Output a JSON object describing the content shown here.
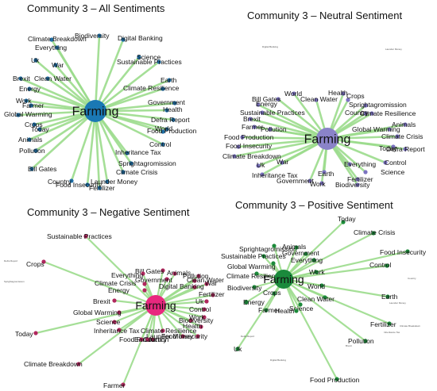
{
  "edge_color": "#9bdc8c",
  "panels": [
    {
      "id": "all",
      "title": "Community 3 – All Sentiments",
      "hub": {
        "label": "Farming",
        "color": "#1a78b4"
      },
      "node_color": "#1f6fa6",
      "nodes": [
        {
          "label": "Biodiversity"
        },
        {
          "label": "Digital Banking"
        },
        {
          "label": "Climate Breakdown"
        },
        {
          "label": "Everything"
        },
        {
          "label": "Science"
        },
        {
          "label": "Uk"
        },
        {
          "label": "War"
        },
        {
          "label": "Sustainable Practices"
        },
        {
          "label": "Clean Water"
        },
        {
          "label": "Brexit"
        },
        {
          "label": "Earth"
        },
        {
          "label": "Energy"
        },
        {
          "label": "Climate Resilience"
        },
        {
          "label": "Work"
        },
        {
          "label": "Farmer"
        },
        {
          "label": "Government"
        },
        {
          "label": "Health"
        },
        {
          "label": "Global Warming"
        },
        {
          "label": "Defra Report"
        },
        {
          "label": "Crops"
        },
        {
          "label": "Today"
        },
        {
          "label": "World"
        },
        {
          "label": "Food Production"
        },
        {
          "label": "Animals"
        },
        {
          "label": "Control"
        },
        {
          "label": "Inheritance Tax"
        },
        {
          "label": "Pollution"
        },
        {
          "label": "Sprightagromission"
        },
        {
          "label": "Bill Gates"
        },
        {
          "label": "Climate Crisis"
        },
        {
          "label": "Country"
        },
        {
          "label": "Food Insecurity"
        },
        {
          "label": "Launder Money"
        },
        {
          "label": "Fertilizer"
        }
      ]
    },
    {
      "id": "neutral",
      "title": "Community 3 – Neutral Sentiment",
      "hub": {
        "label": "Farming",
        "color": "#8a83c8"
      },
      "node_color": "#7b73c0",
      "tiny": [
        "Digital Banking",
        "Launder Money"
      ],
      "nodes": [
        {
          "label": "World"
        },
        {
          "label": "Health"
        },
        {
          "label": "Bill Gates"
        },
        {
          "label": "Clean Water"
        },
        {
          "label": "Crops"
        },
        {
          "label": "Energy"
        },
        {
          "label": "Sprightagromission"
        },
        {
          "label": "Sustainable Practices"
        },
        {
          "label": "Country"
        },
        {
          "label": "Climate Resilience"
        },
        {
          "label": "Brexit"
        },
        {
          "label": "Animals"
        },
        {
          "label": "Farmer"
        },
        {
          "label": "Global Warming"
        },
        {
          "label": "Pollution"
        },
        {
          "label": "Climate Crisis"
        },
        {
          "label": "Food Production"
        },
        {
          "label": "Today"
        },
        {
          "label": "Defra Report"
        },
        {
          "label": "Food Insecurity"
        },
        {
          "label": "War"
        },
        {
          "label": "Control"
        },
        {
          "label": "Climate Breakdown"
        },
        {
          "label": "Everything"
        },
        {
          "label": "Uk"
        },
        {
          "label": "Science"
        },
        {
          "label": "Inheritance Tax"
        },
        {
          "label": "Earth"
        },
        {
          "label": "Fertilizer"
        },
        {
          "label": "Government"
        },
        {
          "label": "Work"
        },
        {
          "label": "Biodiversity"
        }
      ]
    },
    {
      "id": "negative",
      "title": "Community 3 – Negative Sentiment",
      "hub": {
        "label": "Farming",
        "color": "#e8287e"
      },
      "node_color": "#b0285e",
      "tiny": [
        "Defra Report",
        "Sprightagromission"
      ],
      "nodes": [
        {
          "label": "Sustainable Practices"
        },
        {
          "label": "Crops"
        },
        {
          "label": "Bill Gates"
        },
        {
          "label": "Everything"
        },
        {
          "label": "Animals"
        },
        {
          "label": "Pollution"
        },
        {
          "label": "Government"
        },
        {
          "label": "Clean Water"
        },
        {
          "label": "Climate Crisis"
        },
        {
          "label": "War"
        },
        {
          "label": "Digital Banking"
        },
        {
          "label": "Energy"
        },
        {
          "label": "Fertilizer"
        },
        {
          "label": "Brexit"
        },
        {
          "label": "Uk"
        },
        {
          "label": "Global Warming"
        },
        {
          "label": "Control"
        },
        {
          "label": "Science"
        },
        {
          "label": "Biodiversity"
        },
        {
          "label": "Inheritance Tax"
        },
        {
          "label": "Climate Resilience"
        },
        {
          "label": "Health"
        },
        {
          "label": "Work"
        },
        {
          "label": "Food Production"
        },
        {
          "label": "Launder Money"
        },
        {
          "label": "Food Insecurity"
        },
        {
          "label": "Earth"
        },
        {
          "label": "Country"
        },
        {
          "label": "Today"
        },
        {
          "label": "Climate Breakdown"
        },
        {
          "label": "Farmer"
        }
      ]
    },
    {
      "id": "positive",
      "title": "Community 3 – Positive Sentiment",
      "hub": {
        "label": "Farming",
        "color": "#1b8a3c"
      },
      "node_color": "#1c8a3a",
      "tiny": [
        "Country",
        "Launder Money",
        "Climate Breakdown",
        "Inheritance Tax",
        "Brexit",
        "Defra Report",
        "Digital Banking"
      ],
      "nodes": [
        {
          "label": "Today"
        },
        {
          "label": "Climate Crisis"
        },
        {
          "label": "Sprightagromission"
        },
        {
          "label": "Animals"
        },
        {
          "label": "Sustainable Practices"
        },
        {
          "label": "Government"
        },
        {
          "label": "Food Insecurity"
        },
        {
          "label": "Everything"
        },
        {
          "label": "Global Warming"
        },
        {
          "label": "Climate Resilience"
        },
        {
          "label": "Control"
        },
        {
          "label": "Work"
        },
        {
          "label": "Biodiversity"
        },
        {
          "label": "Crops"
        },
        {
          "label": "World"
        },
        {
          "label": "Clean Water"
        },
        {
          "label": "Earth"
        },
        {
          "label": "Energy"
        },
        {
          "label": "Science"
        },
        {
          "label": "Farmer"
        },
        {
          "label": "Health"
        },
        {
          "label": "Fertilizer"
        },
        {
          "label": "Pollution"
        },
        {
          "label": "Uk"
        },
        {
          "label": "Food Production"
        }
      ]
    }
  ]
}
